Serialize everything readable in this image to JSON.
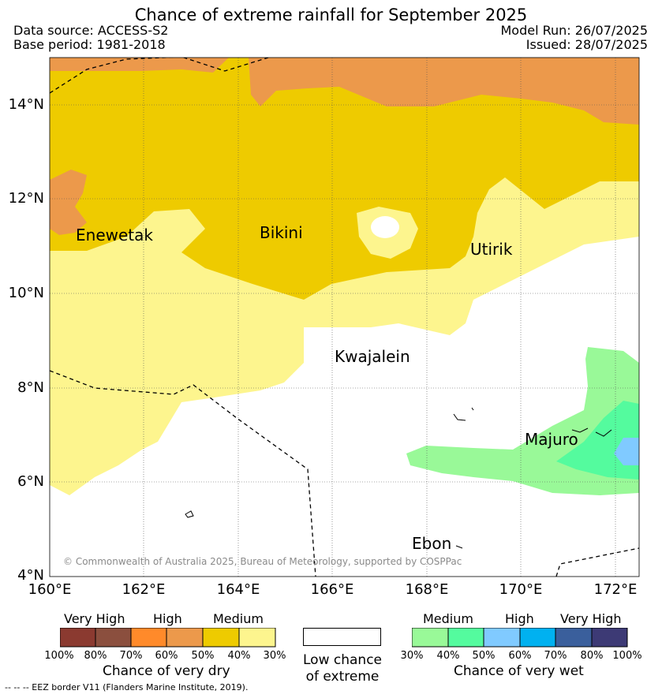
{
  "header": {
    "title": "Chance of extreme rainfall for September 2025",
    "data_source": "Data source: ACCESS-S2",
    "base_period": "Base period: 1981-2018",
    "model_run": "Model Run: 26/07/2025",
    "issued": "Issued: 28/07/2025"
  },
  "map": {
    "lat_labels": [
      "14°N",
      "12°N",
      "10°N",
      "8°N",
      "6°N",
      "4°N"
    ],
    "lon_labels": [
      "160°E",
      "162°E",
      "164°E",
      "166°E",
      "168°E",
      "170°E",
      "172°E"
    ],
    "places": {
      "enewetak": "Enewetak",
      "bikini": "Bikini",
      "utirik": "Utirik",
      "kwajalein": "Kwajalein",
      "majuro": "Majuro",
      "ebon": "Ebon"
    },
    "copyright": "© Commonwealth of Australia 2025, Bureau of Meteorology, supported by COSPPac",
    "colors": {
      "dry_70_60": "#ec994b",
      "dry_50_40": "#eecb00",
      "dry_40_30": "#fdf58e",
      "wet_30_40": "#99f998",
      "wet_40_50": "#54fb9e",
      "wet_50_60": "#80caff"
    }
  },
  "legend": {
    "dry": {
      "bands": [
        "Very High",
        "High",
        "Medium"
      ],
      "ticks": [
        "100%",
        "80%",
        "70%",
        "60%",
        "50%",
        "40%",
        "30%"
      ],
      "colors": [
        "#8b3a30",
        "#8b4f3e",
        "#ff8a2a",
        "#ec994b",
        "#eecb00",
        "#fdf58e"
      ],
      "title": "Chance of very dry"
    },
    "low": {
      "line1": "Low chance",
      "line2": "of extreme"
    },
    "wet": {
      "bands": [
        "Medium",
        "High",
        "Very High"
      ],
      "ticks": [
        "30%",
        "40%",
        "50%",
        "60%",
        "70%",
        "80%",
        "100%"
      ],
      "colors": [
        "#99f998",
        "#54fb9e",
        "#80caff",
        "#00b1f0",
        "#3a5f9c",
        "#3d3a75"
      ],
      "title": "Chance of very wet"
    }
  },
  "footer": {
    "eez_note": "--  --  -- EEZ border V11 (Flanders Marine Institute, 2019)."
  }
}
